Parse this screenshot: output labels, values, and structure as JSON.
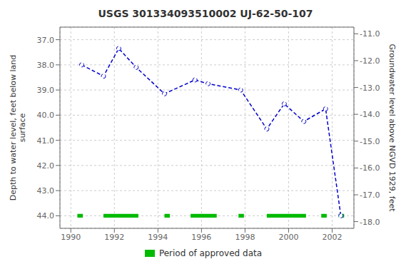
{
  "chart_data": {
    "type": "line",
    "title": "USGS 301334093510002 UJ-62-50-107",
    "x": [
      1990.5,
      1991.5,
      1992.2,
      1993.0,
      1994.3,
      1995.7,
      1996.3,
      1997.8,
      1999.0,
      1999.8,
      2000.7,
      2001.7,
      2002.4
    ],
    "values": [
      38.0,
      38.45,
      37.35,
      38.1,
      39.15,
      38.6,
      38.75,
      39.0,
      40.55,
      39.55,
      40.25,
      39.75,
      44.0
    ],
    "color": "#0000cc",
    "line_style": "dashed",
    "marker": "circle",
    "y_label": "Depth to water level, feet below land\nsurface",
    "y2_label": "Groundwater level above NGVD 1929, feet",
    "xlim": [
      1989.5,
      2003.0
    ],
    "xticks": [
      1990,
      1992,
      1994,
      1996,
      1998,
      2000,
      2002
    ],
    "ylim": [
      44.5,
      36.5
    ],
    "yticks": [
      {
        "value": 37.0,
        "label": "37.0"
      },
      {
        "value": 38.0,
        "label": "38.0"
      },
      {
        "value": 39.0,
        "label": "39.0"
      },
      {
        "value": 40.0,
        "label": "40.0"
      },
      {
        "value": 41.0,
        "label": "41.0"
      },
      {
        "value": 42.0,
        "label": "42.0"
      },
      {
        "value": 43.0,
        "label": "43.0"
      },
      {
        "value": 44.0,
        "label": "44.0"
      }
    ],
    "y2lim": [
      -18.25,
      -10.75
    ],
    "y2ticks": [
      {
        "value": -11.0,
        "label": "-11.0"
      },
      {
        "value": -12.0,
        "label": "-12.0"
      },
      {
        "value": -13.0,
        "label": "-13.0"
      },
      {
        "value": -14.0,
        "label": "-14.0"
      },
      {
        "value": -15.0,
        "label": "-15.0"
      },
      {
        "value": -16.0,
        "label": "-16.0"
      },
      {
        "value": -17.0,
        "label": "-17.0"
      },
      {
        "value": -18.0,
        "label": "-18.0"
      }
    ],
    "periods": {
      "name": "Period of approved data",
      "color": "#00bb00",
      "y": 44.0,
      "thickness": 0.15,
      "ranges": [
        [
          1990.3,
          1990.55
        ],
        [
          1991.5,
          1993.1
        ],
        [
          1994.3,
          1994.55
        ],
        [
          1995.5,
          1996.7
        ],
        [
          1997.7,
          1997.95
        ],
        [
          1999.0,
          2000.8
        ],
        [
          2001.5,
          2001.75
        ],
        [
          2002.3,
          2002.55
        ]
      ]
    },
    "grid": true,
    "legend": "bottom"
  }
}
